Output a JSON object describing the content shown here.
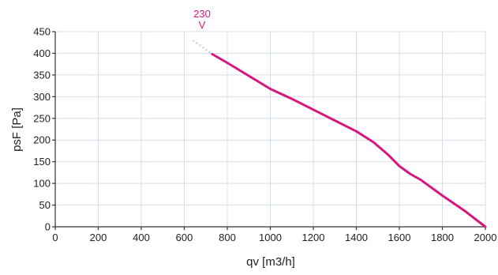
{
  "chart_data": {
    "type": "line",
    "title": "",
    "xlabel": "qv [m3/h]",
    "ylabel": "psF [Pa]",
    "xlim": [
      0,
      2000
    ],
    "ylim": [
      0,
      450
    ],
    "xticks": [
      0,
      200,
      400,
      600,
      800,
      1000,
      1200,
      1400,
      1600,
      1800,
      2000
    ],
    "yticks": [
      0,
      50,
      100,
      150,
      200,
      250,
      300,
      350,
      400,
      450
    ],
    "grid": true,
    "series": [
      {
        "name": "230 V",
        "color": "#d6177f",
        "x": [
          730,
          800,
          900,
          1000,
          1100,
          1200,
          1300,
          1400,
          1480,
          1550,
          1600,
          1650,
          1700,
          1800,
          1900,
          2000
        ],
        "y": [
          398,
          378,
          348,
          318,
          295,
          270,
          245,
          220,
          195,
          165,
          140,
          122,
          108,
          72,
          38,
          0
        ]
      }
    ],
    "extrapolated_segment": {
      "color": "#c8d0dc",
      "x": [
        640,
        730
      ],
      "y": [
        430,
        398
      ]
    },
    "annotations": [
      "230",
      "V"
    ]
  }
}
